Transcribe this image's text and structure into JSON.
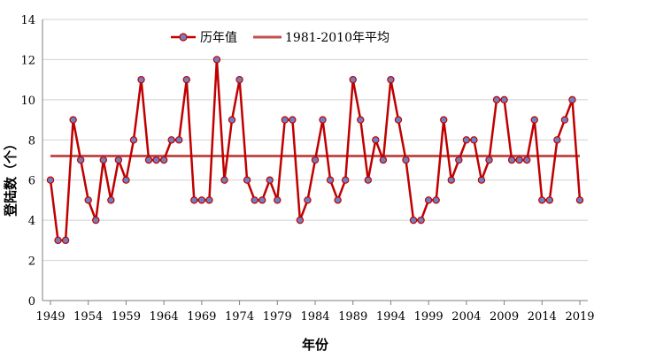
{
  "chart_data": {
    "type": "line",
    "xlabel": "年份",
    "ylabel": "登陆数（个）",
    "xlim": [
      1949,
      2019
    ],
    "ylim": [
      0,
      14
    ],
    "y_ticks": [
      0,
      2,
      4,
      6,
      8,
      10,
      12,
      14
    ],
    "x_ticks": [
      1949,
      1954,
      1959,
      1964,
      1969,
      1974,
      1979,
      1984,
      1989,
      1994,
      1999,
      2004,
      2009,
      2014,
      2019
    ],
    "grid": "horizontal",
    "legend_position": "top-left",
    "series": [
      {
        "name": "历年值",
        "color": "#c00000",
        "marker_color": "#6f7fbf",
        "x": [
          1949,
          1950,
          1951,
          1952,
          1953,
          1954,
          1955,
          1956,
          1957,
          1958,
          1959,
          1960,
          1961,
          1962,
          1963,
          1964,
          1965,
          1966,
          1967,
          1968,
          1969,
          1970,
          1971,
          1972,
          1973,
          1974,
          1975,
          1976,
          1977,
          1978,
          1979,
          1980,
          1981,
          1982,
          1983,
          1984,
          1985,
          1986,
          1987,
          1988,
          1989,
          1990,
          1991,
          1992,
          1993,
          1994,
          1995,
          1996,
          1997,
          1998,
          1999,
          2000,
          2001,
          2002,
          2003,
          2004,
          2005,
          2006,
          2007,
          2008,
          2009,
          2010,
          2011,
          2012,
          2013,
          2014,
          2015,
          2016,
          2017,
          2018,
          2019
        ],
        "values": [
          6,
          3,
          3,
          9,
          7,
          5,
          4,
          7,
          5,
          7,
          6,
          8,
          11,
          7,
          7,
          7,
          8,
          8,
          11,
          5,
          5,
          5,
          12,
          6,
          9,
          11,
          6,
          5,
          5,
          6,
          5,
          9,
          9,
          4,
          5,
          7,
          9,
          6,
          5,
          6,
          11,
          9,
          6,
          8,
          7,
          11,
          9,
          7,
          4,
          4,
          5,
          5,
          9,
          6,
          7,
          8,
          8,
          6,
          7,
          10,
          10,
          7,
          7,
          7,
          9,
          5,
          5,
          8,
          9,
          10,
          5
        ]
      },
      {
        "name": "1981-2010年平均",
        "color": "#c0504d",
        "values": [
          7.2
        ]
      }
    ]
  }
}
